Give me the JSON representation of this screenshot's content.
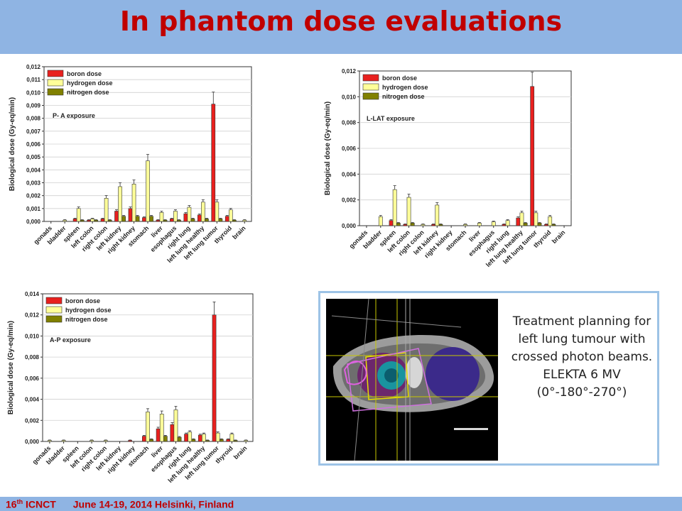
{
  "slide": {
    "title": "In phantom dose evaluations",
    "footer": {
      "sup": "th",
      "icnct": "16",
      "icnct_rest": " ICNCT",
      "dates": "June 14-19, 2014 Helsinki, Finland"
    },
    "caption": {
      "line1": "Treatment planning for left lung tumour with crossed photon beams.",
      "line2": "ELEKTA 6 MV (0°-180°-270°)"
    },
    "image": "ct-treatment-plan-image"
  },
  "colors": {
    "boron": "#e8201e",
    "hydrogen": "#ffff99",
    "nitrogen": "#808000",
    "accent": "#c00000",
    "bar_bg": "#8fb4e3"
  },
  "chart_data": [
    {
      "type": "bar",
      "annotation": "P- A exposure",
      "ylabel": "Biological dose (Gy-eq/min)",
      "ylim": [
        0,
        0.012
      ],
      "yticks": [
        "0,000",
        "0,001",
        "0,002",
        "0,003",
        "0,004",
        "0,005",
        "0,006",
        "0,007",
        "0,008",
        "0,009",
        "0,010",
        "0,011",
        "0,012"
      ],
      "categories": [
        "gonads",
        "bladder",
        "spleen",
        "left colon",
        "right colon",
        "left kidney",
        "right kidney",
        "stomach",
        "liver",
        "esophagus",
        "right lung",
        "left lung healthy",
        "left lung tumor",
        "thyroid",
        "brain"
      ],
      "legend": "top-left",
      "series": [
        {
          "name": "boron dose",
          "values": [
            0,
            0,
            0.0002,
            0.0001,
            0.0002,
            0.0008,
            0.001,
            0.0003,
            0.0001,
            0.0002,
            0.0006,
            0.0005,
            0.0091,
            0.0004,
            0
          ]
        },
        {
          "name": "hydrogen dose",
          "values": [
            0,
            0.0001,
            0.001,
            0.0002,
            0.0018,
            0.0027,
            0.0029,
            0.0047,
            0.0007,
            0.0008,
            0.0011,
            0.0015,
            0.0015,
            0.0009,
            0.0001
          ]
        },
        {
          "name": "nitrogen dose",
          "values": [
            0,
            0,
            0.0001,
            0.0001,
            0.0001,
            0.0004,
            0.0004,
            0.0004,
            0.0001,
            0.0001,
            0.0002,
            0.0002,
            0.0002,
            0.0001,
            0
          ]
        }
      ]
    },
    {
      "type": "bar",
      "annotation": "L-LAT exposure",
      "ylabel": "Biological dose (Gy-eq/min)",
      "ylim": [
        0,
        0.012
      ],
      "yticks": [
        "0,000",
        "0,002",
        "0,004",
        "0,006",
        "0,008",
        "0,010",
        "0,012"
      ],
      "categories": [
        "gonads",
        "bladder",
        "spleen",
        "left colon",
        "right colon",
        "left kidney",
        "right kidney",
        "stomach",
        "liver",
        "esophagus",
        "right lung",
        "left lung healthy",
        "left lung tumor",
        "thyroid",
        "brain"
      ],
      "legend": "top-left",
      "series": [
        {
          "name": "boron dose",
          "values": [
            0,
            0,
            0.0004,
            0.0001,
            0,
            0.0001,
            0,
            0,
            0,
            0,
            0.0001,
            0.0006,
            0.0108,
            0.0001,
            0
          ]
        },
        {
          "name": "hydrogen dose",
          "values": [
            0,
            0.0007,
            0.0028,
            0.0022,
            0.0001,
            0.0016,
            0,
            0.0001,
            0.0002,
            0.0003,
            0.0004,
            0.001,
            0.001,
            0.0007,
            0
          ]
        },
        {
          "name": "nitrogen dose",
          "values": [
            0,
            0,
            0.0002,
            0.0002,
            0,
            0.0001,
            0,
            0,
            0,
            0,
            0,
            0.0002,
            0.0002,
            0.0001,
            0
          ]
        }
      ]
    },
    {
      "type": "bar",
      "annotation": "A-P exposure",
      "ylabel": "Biological dose (Gy-eq/min)",
      "ylim": [
        0,
        0.014
      ],
      "yticks": [
        "0,000",
        "0,002",
        "0,004",
        "0,006",
        "0,008",
        "0,010",
        "0,012",
        "0,014"
      ],
      "categories": [
        "gonads",
        "bladder",
        "spleen",
        "left colon",
        "right colon",
        "left kidney",
        "right kidney",
        "stomach",
        "liver",
        "esophagus",
        "right lung",
        "left lung healthy",
        "left lung tumor",
        "thyroid",
        "brain"
      ],
      "legend": "top-left",
      "series": [
        {
          "name": "boron dose",
          "values": [
            0,
            0,
            0,
            0,
            0,
            0,
            0.0001,
            0.0005,
            0.0012,
            0.0016,
            0.0007,
            0.0006,
            0.012,
            0.0002,
            0
          ]
        },
        {
          "name": "hydrogen dose",
          "values": [
            0.0001,
            0.0001,
            0,
            0.0001,
            0.0001,
            0,
            0,
            0.0028,
            0.0026,
            0.003,
            0.0009,
            0.0007,
            0.0008,
            0.0007,
            0.0001
          ]
        },
        {
          "name": "nitrogen dose",
          "values": [
            0,
            0,
            0,
            0,
            0,
            0,
            0,
            0.0002,
            0.0005,
            0.0004,
            0.0002,
            0.0001,
            0.0002,
            0.0001,
            0
          ]
        }
      ]
    }
  ]
}
